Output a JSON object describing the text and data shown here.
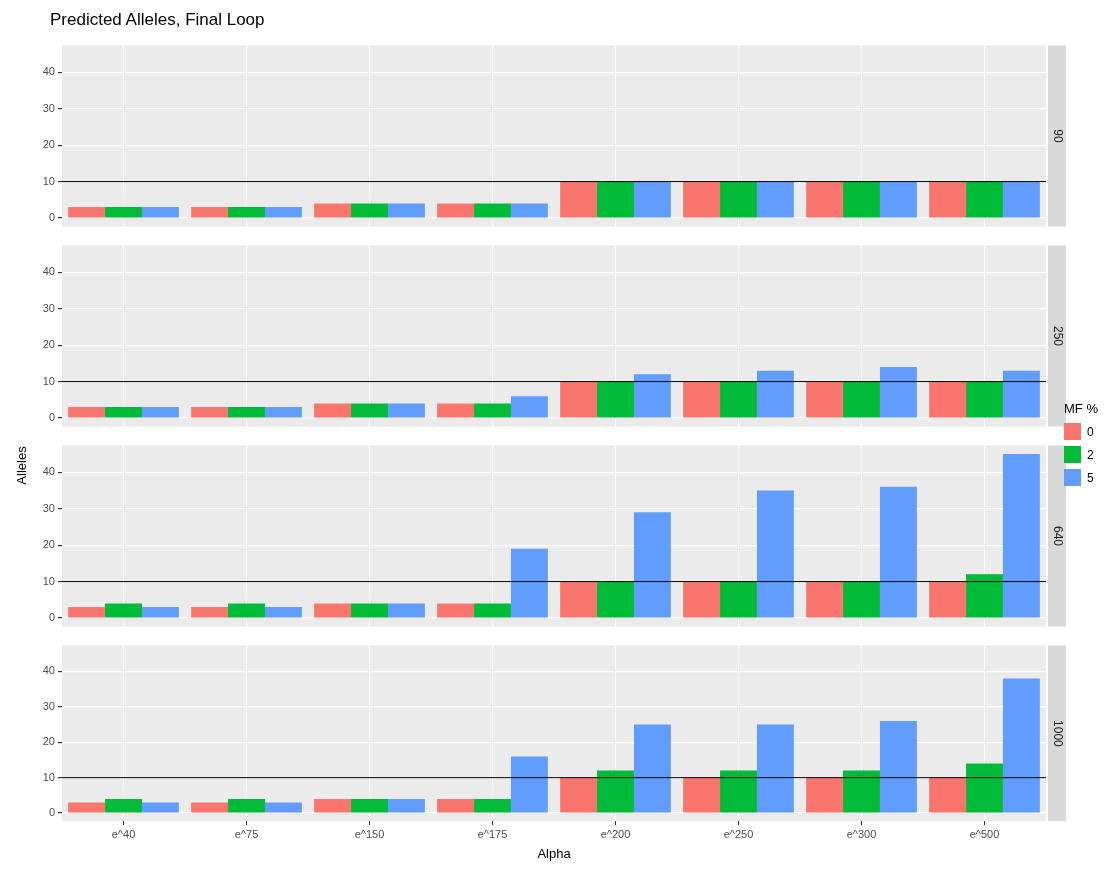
{
  "chart_data": [
    {
      "type": "bar",
      "title": "Predicted Alleles, Final Loop",
      "y2label": "90",
      "legend_title": "MF %",
      "legend": "right",
      "tick_labels": "y",
      "grid": true,
      "categories": [
        null,
        null,
        null,
        null,
        null,
        null,
        null,
        null
      ],
      "ylim": [
        -2.3,
        47.3
      ],
      "yticks": [
        0,
        10,
        20,
        30,
        40
      ],
      "ref_lines": [
        {
          "axis": "y",
          "value": 10,
          "color": "#000000"
        }
      ],
      "series": [
        {
          "name": "0",
          "color": "#f8766d",
          "values": [
            3,
            3,
            4,
            4,
            10,
            10,
            10,
            10
          ]
        },
        {
          "name": "2",
          "color": "#00ba38",
          "values": [
            3,
            3,
            4,
            4,
            10,
            10,
            10,
            10
          ]
        },
        {
          "name": "5",
          "color": "#619cff",
          "values": [
            3,
            3,
            4,
            4,
            10,
            10,
            10,
            10
          ]
        }
      ]
    },
    {
      "type": "bar",
      "y2label": "250",
      "tick_labels": "y",
      "grid": true,
      "categories": [
        null,
        null,
        null,
        null,
        null,
        null,
        null,
        null
      ],
      "ylim": [
        -2.3,
        47.3
      ],
      "yticks": [
        0,
        10,
        20,
        30,
        40
      ],
      "ref_lines": [
        {
          "axis": "y",
          "value": 10,
          "color": "#000000"
        }
      ],
      "series": [
        {
          "color": "#f8766d",
          "values": [
            3,
            3,
            4,
            4,
            10,
            10,
            10,
            10
          ]
        },
        {
          "color": "#00ba38",
          "values": [
            3,
            3,
            4,
            4,
            10,
            10,
            10,
            10
          ]
        },
        {
          "color": "#619cff",
          "values": [
            3,
            3,
            4,
            6,
            12,
            13,
            14,
            13
          ]
        }
      ]
    },
    {
      "type": "bar",
      "ylabel": "Alleles",
      "y2label": "640",
      "tick_labels": "y",
      "grid": true,
      "categories": [
        null,
        null,
        null,
        null,
        null,
        null,
        null,
        null
      ],
      "ylim": [
        -2.3,
        47.3
      ],
      "yticks": [
        0,
        10,
        20,
        30,
        40
      ],
      "ref_lines": [
        {
          "axis": "y",
          "value": 10,
          "color": "#000000"
        }
      ],
      "series": [
        {
          "color": "#f8766d",
          "values": [
            3,
            3,
            4,
            4,
            10,
            10,
            10,
            10
          ]
        },
        {
          "color": "#00ba38",
          "values": [
            4,
            4,
            4,
            4,
            10,
            10,
            10,
            12
          ]
        },
        {
          "color": "#619cff",
          "values": [
            3,
            3,
            4,
            19,
            29,
            35,
            36,
            45
          ]
        }
      ]
    },
    {
      "type": "bar",
      "y2label": "1000",
      "xlabel": "Alpha",
      "grid": true,
      "categories": [
        "e^40",
        "e^75",
        "e^150",
        "e^175",
        "e^200",
        "e^250",
        "e^300",
        "e^500"
      ],
      "ylim": [
        -2.3,
        47.3
      ],
      "yticks": [
        0,
        10,
        20,
        30,
        40
      ],
      "ref_lines": [
        {
          "axis": "y",
          "value": 10,
          "color": "#000000"
        }
      ],
      "series": [
        {
          "color": "#f8766d",
          "values": [
            3,
            3,
            4,
            4,
            10,
            10,
            10,
            10
          ]
        },
        {
          "color": "#00ba38",
          "values": [
            4,
            4,
            4,
            4,
            12,
            12,
            12,
            14
          ]
        },
        {
          "color": "#619cff",
          "values": [
            3,
            3,
            4,
            16,
            25,
            25,
            26,
            38
          ]
        }
      ]
    }
  ]
}
